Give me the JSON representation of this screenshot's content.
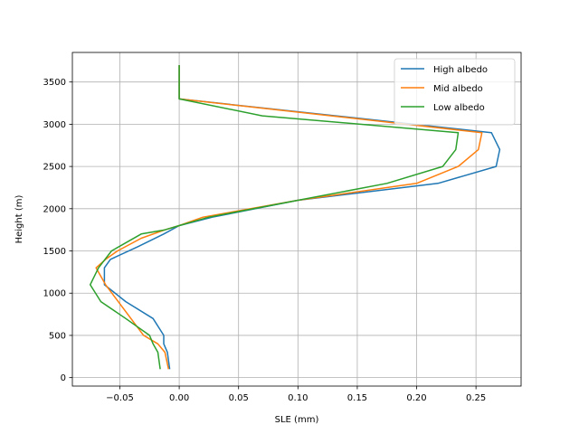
{
  "chart_data": {
    "type": "line",
    "title": "",
    "xlabel": "SLE (mm)",
    "ylabel": "Height (m)",
    "xlim": [
      -0.09,
      0.288
    ],
    "ylim": [
      -100,
      3850
    ],
    "xticks": [
      -0.05,
      0.0,
      0.05,
      0.1,
      0.15,
      0.2,
      0.25
    ],
    "xtick_labels": [
      "−0.05",
      "0.00",
      "0.05",
      "0.10",
      "0.15",
      "0.20",
      "0.25"
    ],
    "yticks": [
      0,
      500,
      1000,
      1500,
      2000,
      2500,
      3000,
      3500
    ],
    "ytick_labels": [
      "0",
      "500",
      "1000",
      "1500",
      "2000",
      "2500",
      "3000",
      "3500"
    ],
    "grid": true,
    "legend_position": "top-right",
    "series": [
      {
        "name": "High albedo",
        "color": "#1f77b4",
        "x": [
          -0.008,
          -0.01,
          -0.013,
          -0.013,
          -0.022,
          -0.045,
          -0.063,
          -0.063,
          -0.058,
          -0.035,
          -0.013,
          0.0,
          0.028,
          0.1,
          0.218,
          0.267,
          0.27,
          0.263,
          0.0,
          0.0
        ],
        "y": [
          100,
          300,
          400,
          500,
          700,
          900,
          1100,
          1300,
          1400,
          1550,
          1700,
          1800,
          1900,
          2100,
          2300,
          2500,
          2700,
          2900,
          3300,
          3700
        ]
      },
      {
        "name": "Mid albedo",
        "color": "#ff7f0e",
        "x": [
          -0.009,
          -0.012,
          -0.018,
          -0.03,
          -0.062,
          -0.07,
          -0.062,
          -0.052,
          -0.032,
          -0.012,
          0.0,
          0.02,
          0.1,
          0.2,
          0.235,
          0.252,
          0.255,
          0.255,
          0.0,
          0.0
        ],
        "y": [
          100,
          300,
          400,
          500,
          1100,
          1300,
          1400,
          1500,
          1650,
          1750,
          1800,
          1900,
          2100,
          2300,
          2500,
          2700,
          2900,
          2900,
          3300,
          3700
        ]
      },
      {
        "name": "Low albedo",
        "color": "#2ca02c",
        "x": [
          -0.016,
          -0.018,
          -0.022,
          -0.025,
          -0.045,
          -0.066,
          -0.075,
          -0.068,
          -0.057,
          -0.032,
          -0.012,
          0.0,
          0.025,
          0.1,
          0.175,
          0.222,
          0.233,
          0.235,
          0.07,
          0.0,
          0.0
        ],
        "y": [
          100,
          300,
          400,
          500,
          700,
          900,
          1100,
          1300,
          1500,
          1700,
          1750,
          1800,
          1900,
          2100,
          2300,
          2500,
          2700,
          2900,
          3100,
          3300,
          3700
        ]
      }
    ]
  }
}
